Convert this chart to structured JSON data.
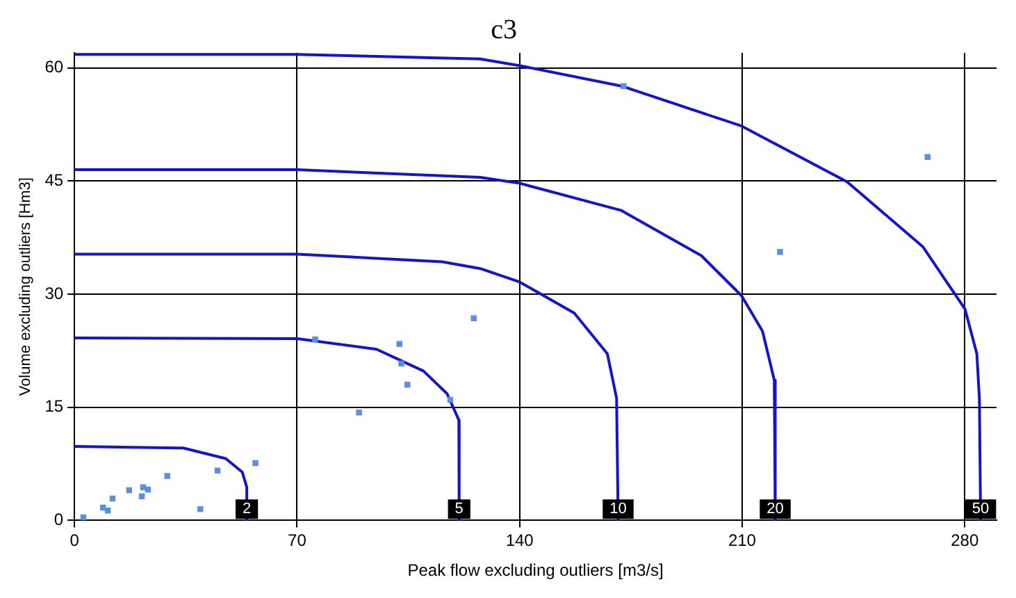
{
  "chart_data": {
    "type": "scatter",
    "title": "c3",
    "xlabel": "Peak flow excluding outliers [m3/s]",
    "ylabel": "Volume excluding outliers [Hm3]",
    "xlim": [
      0,
      290
    ],
    "ylim": [
      0,
      62
    ],
    "xticks": [
      0,
      70,
      140,
      210,
      280
    ],
    "yticks": [
      0,
      15,
      30,
      45,
      60
    ],
    "grid": true,
    "legend": false,
    "series": [
      {
        "marker": "square",
        "color": "#5b8fe0",
        "x": [
          2.8,
          9.0,
          10.5,
          12,
          17.2,
          21.2,
          21.6,
          23.1,
          29.2,
          39.6,
          45,
          56.9,
          75.7,
          89.5,
          102.2,
          102.8,
          104.7,
          118.2,
          125.6,
          172.7,
          221.9,
          268.3
        ],
        "values": [
          0.4,
          1.7,
          1.3,
          2.9,
          4.0,
          3.2,
          4.4,
          4.1,
          5.9,
          1.5,
          6.6,
          7.6,
          24.0,
          14.3,
          23.4,
          20.8,
          18.0,
          16.0,
          26.8,
          57.6,
          35.6,
          48.2
        ]
      },
      {
        "type": "line",
        "marker": "none",
        "color": "#1414c8",
        "x": [
          0,
          34.2,
          47.6,
          52.8,
          54.2,
          54.2
        ],
        "values": [
          9.8,
          9.6,
          8.2,
          6.4,
          4.4,
          0
        ]
      },
      {
        "type": "line",
        "marker": "none",
        "color": "#1414c8",
        "x": [
          0,
          70,
          95,
          109.8,
          117.2,
          120.9,
          121
        ],
        "values": [
          24.2,
          24.1,
          22.7,
          19.8,
          16.8,
          13.3,
          0
        ]
      },
      {
        "type": "line",
        "marker": "none",
        "color": "#1414c8",
        "x": [
          0,
          70,
          115.7,
          127.6,
          140.1,
          157.2,
          167.6,
          170.5,
          171
        ],
        "values": [
          35.3,
          35.3,
          34.3,
          33.4,
          31.6,
          27.5,
          22.1,
          16.2,
          0
        ]
      },
      {
        "type": "line",
        "marker": "none",
        "color": "#1414c8",
        "x": [
          0,
          70,
          127.6,
          140.1,
          172,
          197.2,
          209.8,
          216.4,
          220.1,
          220.4
        ],
        "values": [
          46.5,
          46.5,
          45.5,
          44.7,
          41.1,
          35.1,
          29.8,
          25.1,
          18.6,
          0
        ]
      },
      {
        "type": "line",
        "marker": "none",
        "color": "#1414c8",
        "x": [
          0,
          70,
          127.6,
          140.1,
          172,
          209.8,
          243,
          266.8,
          280.1,
          283.8,
          284.6,
          285
        ],
        "values": [
          61.8,
          61.8,
          61.2,
          60.3,
          57.6,
          52.3,
          44.9,
          36.3,
          28.0,
          22.1,
          16.2,
          0
        ]
      }
    ],
    "annotations": [
      {
        "text": "2",
        "x": 54.2,
        "y": 1.5
      },
      {
        "text": "5",
        "x": 121,
        "y": 1.5
      },
      {
        "text": "10",
        "x": 171,
        "y": 1.5
      },
      {
        "text": "20",
        "x": 220.4,
        "y": 1.5
      },
      {
        "text": "50",
        "x": 285,
        "y": 1.5
      }
    ]
  }
}
